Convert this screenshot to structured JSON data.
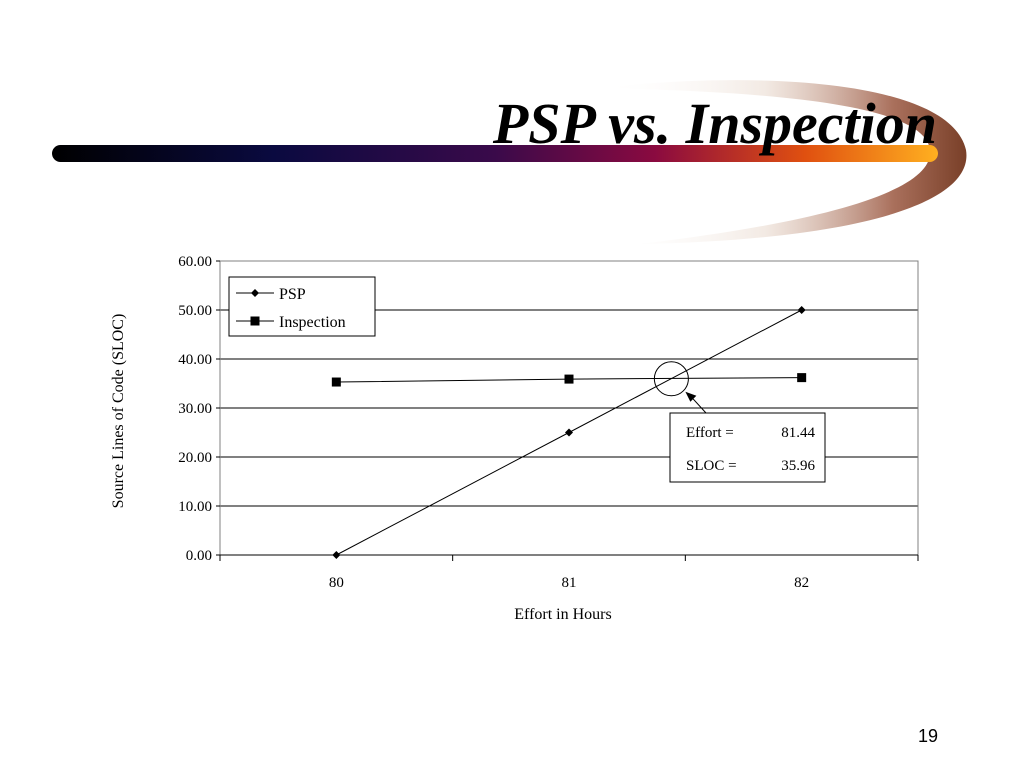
{
  "slide": {
    "title": "PSP vs. Inspection",
    "page_number": "19"
  },
  "chart_data": {
    "type": "line",
    "title": "",
    "xlabel": "Effort in Hours",
    "ylabel": "Source Lines of Code (SLOC)",
    "categories": [
      "80",
      "81",
      "82"
    ],
    "x": [
      80,
      81,
      82
    ],
    "ylim": [
      0,
      60
    ],
    "y_ticks": [
      "0.00",
      "10.00",
      "20.00",
      "30.00",
      "40.00",
      "50.00",
      "60.00"
    ],
    "grid": "horizontal",
    "legend_position": "top-left",
    "series": [
      {
        "name": "PSP",
        "marker": "diamond",
        "color": "#000000",
        "values": [
          0,
          25,
          50
        ]
      },
      {
        "name": "Inspection",
        "marker": "square",
        "color": "#000000",
        "values": [
          35.3,
          35.9,
          36.2
        ]
      }
    ],
    "annotation": {
      "intersection_x": 81.44,
      "intersection_y": 35.96,
      "rows": [
        {
          "label": "Effort =",
          "value": "81.44"
        },
        {
          "label": "SLOC =",
          "value": "35.96"
        }
      ]
    }
  }
}
